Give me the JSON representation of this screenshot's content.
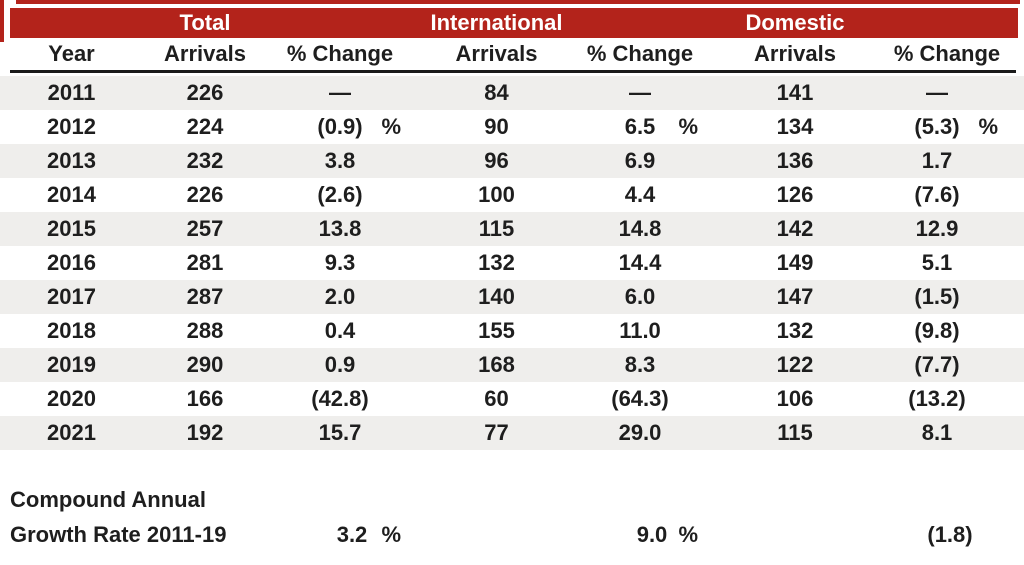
{
  "colors": {
    "band_red": "#B3231B",
    "stripe_gray": "#EFEEEC",
    "text_dark": "#1E1E1E",
    "rule_black": "#1B1B1B"
  },
  "chart_data": {
    "type": "table",
    "group_headers": [
      "Total",
      "International",
      "Domestic"
    ],
    "columns": [
      "Year",
      "Arrivals",
      "% Change",
      "Arrivals",
      "% Change",
      "Arrivals",
      "% Change"
    ],
    "rows": [
      [
        "2011",
        "226",
        "—",
        "",
        "84",
        "—",
        "",
        "141",
        "—",
        ""
      ],
      [
        "2012",
        "224",
        "(0.9)",
        "%",
        "90",
        "6.5",
        "%",
        "134",
        "(5.3)",
        "%"
      ],
      [
        "2013",
        "232",
        "3.8",
        "",
        "96",
        "6.9",
        "",
        "136",
        "1.7",
        ""
      ],
      [
        "2014",
        "226",
        "(2.6)",
        "",
        "100",
        "4.4",
        "",
        "126",
        "(7.6)",
        ""
      ],
      [
        "2015",
        "257",
        "13.8",
        "",
        "115",
        "14.8",
        "",
        "142",
        "12.9",
        ""
      ],
      [
        "2016",
        "281",
        "9.3",
        "",
        "132",
        "14.4",
        "",
        "149",
        "5.1",
        ""
      ],
      [
        "2017",
        "287",
        "2.0",
        "",
        "140",
        "6.0",
        "",
        "147",
        "(1.5)",
        ""
      ],
      [
        "2018",
        "288",
        "0.4",
        "",
        "155",
        "11.0",
        "",
        "132",
        "(9.8)",
        ""
      ],
      [
        "2019",
        "290",
        "0.9",
        "",
        "168",
        "8.3",
        "",
        "122",
        "(7.7)",
        ""
      ],
      [
        "2020",
        "166",
        "(42.8)",
        "",
        "60",
        "(64.3)",
        "",
        "106",
        "(13.2)",
        ""
      ],
      [
        "2021",
        "192",
        "15.7",
        "",
        "77",
        "29.0",
        "",
        "115",
        "8.1",
        ""
      ]
    ],
    "footer": {
      "label_line1": "Compound Annual",
      "label_line2": "Growth Rate 2011-19",
      "total_value": "3.2",
      "total_pct_sign": "%",
      "intl_value": "9.0",
      "intl_pct_sign": "%",
      "domestic_value": "(1.8)",
      "domestic_pct_sign": ""
    }
  }
}
